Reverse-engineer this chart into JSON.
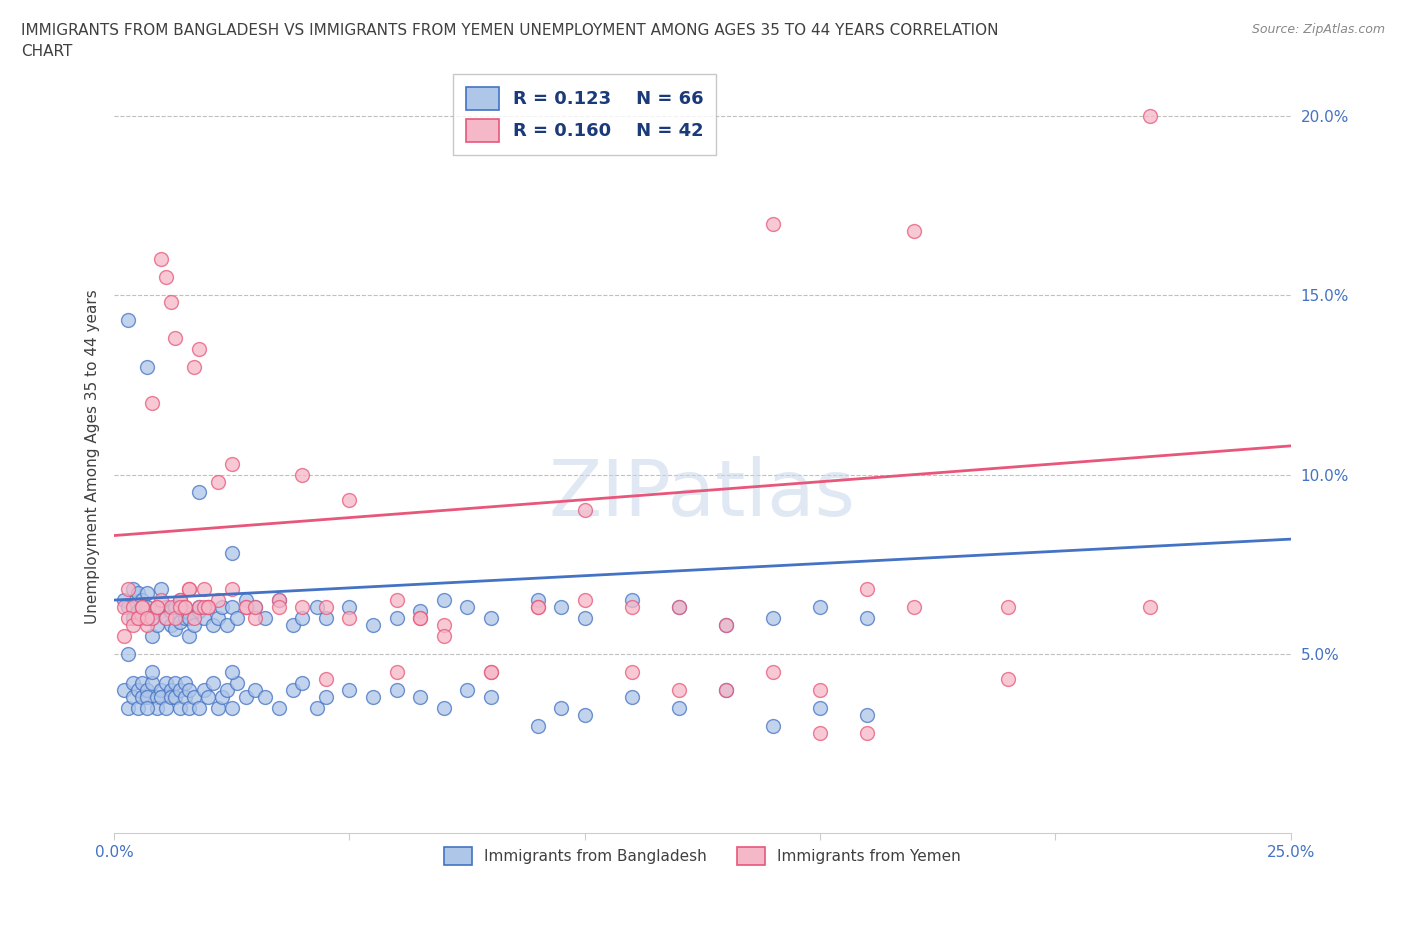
{
  "title_line1": "IMMIGRANTS FROM BANGLADESH VS IMMIGRANTS FROM YEMEN UNEMPLOYMENT AMONG AGES 35 TO 44 YEARS CORRELATION",
  "title_line2": "CHART",
  "source": "Source: ZipAtlas.com",
  "ylabel": "Unemployment Among Ages 35 to 44 years",
  "watermark": "ZIPatlas",
  "xlim": [
    0.0,
    0.25
  ],
  "ylim": [
    0.0,
    0.21
  ],
  "xticks": [
    0.0,
    0.05,
    0.1,
    0.15,
    0.2,
    0.25
  ],
  "yticks": [
    0.0,
    0.05,
    0.1,
    0.15,
    0.2
  ],
  "xticklabels": [
    "0.0%",
    "",
    "",
    "",
    "",
    "25.0%"
  ],
  "yticklabels": [
    "",
    "5.0%",
    "10.0%",
    "15.0%",
    "20.0%"
  ],
  "legend_entries": [
    {
      "label": "Immigrants from Bangladesh",
      "R": "0.123",
      "N": "66"
    },
    {
      "label": "Immigrants from Yemen",
      "R": "0.160",
      "N": "42"
    }
  ],
  "bangladesh_x": [
    0.002,
    0.003,
    0.004,
    0.004,
    0.005,
    0.005,
    0.006,
    0.006,
    0.007,
    0.007,
    0.008,
    0.008,
    0.009,
    0.009,
    0.01,
    0.01,
    0.011,
    0.011,
    0.012,
    0.012,
    0.013,
    0.013,
    0.014,
    0.014,
    0.015,
    0.015,
    0.016,
    0.016,
    0.017,
    0.018,
    0.019,
    0.02,
    0.021,
    0.022,
    0.023,
    0.024,
    0.025,
    0.026,
    0.028,
    0.03,
    0.032,
    0.035,
    0.038,
    0.04,
    0.043,
    0.045,
    0.05,
    0.055,
    0.06,
    0.065,
    0.07,
    0.075,
    0.08,
    0.09,
    0.095,
    0.1,
    0.11,
    0.12,
    0.13,
    0.14,
    0.15,
    0.16,
    0.003,
    0.007,
    0.018,
    0.025
  ],
  "bangladesh_y": [
    0.065,
    0.063,
    0.06,
    0.068,
    0.062,
    0.067,
    0.06,
    0.065,
    0.063,
    0.067,
    0.055,
    0.06,
    0.058,
    0.063,
    0.062,
    0.068,
    0.06,
    0.063,
    0.058,
    0.062,
    0.057,
    0.063,
    0.059,
    0.065,
    0.06,
    0.062,
    0.055,
    0.06,
    0.058,
    0.062,
    0.06,
    0.063,
    0.058,
    0.06,
    0.063,
    0.058,
    0.063,
    0.06,
    0.065,
    0.063,
    0.06,
    0.065,
    0.058,
    0.06,
    0.063,
    0.06,
    0.063,
    0.058,
    0.06,
    0.062,
    0.065,
    0.063,
    0.06,
    0.065,
    0.063,
    0.06,
    0.065,
    0.063,
    0.058,
    0.06,
    0.063,
    0.06,
    0.143,
    0.13,
    0.095,
    0.078
  ],
  "bangladesh_y2": [
    0.04,
    0.035,
    0.042,
    0.038,
    0.035,
    0.04,
    0.038,
    0.042,
    0.04,
    0.038,
    0.042,
    0.045,
    0.038,
    0.035,
    0.04,
    0.038,
    0.042,
    0.035,
    0.04,
    0.038,
    0.042,
    0.038,
    0.035,
    0.04,
    0.042,
    0.038,
    0.035,
    0.04,
    0.038,
    0.035,
    0.04,
    0.038,
    0.042,
    0.035,
    0.038,
    0.04,
    0.035,
    0.042,
    0.038,
    0.04,
    0.038,
    0.035,
    0.04,
    0.042,
    0.035,
    0.038,
    0.04,
    0.038,
    0.04,
    0.038,
    0.035,
    0.04,
    0.038,
    0.03,
    0.035,
    0.033,
    0.038,
    0.035,
    0.04,
    0.03,
    0.035,
    0.033,
    0.05,
    0.035,
    0.063,
    0.045
  ],
  "yemen_x": [
    0.002,
    0.003,
    0.004,
    0.005,
    0.006,
    0.007,
    0.008,
    0.009,
    0.01,
    0.011,
    0.012,
    0.013,
    0.014,
    0.015,
    0.016,
    0.017,
    0.018,
    0.019,
    0.02,
    0.022,
    0.025,
    0.028,
    0.03,
    0.035,
    0.04,
    0.045,
    0.05,
    0.06,
    0.065,
    0.07,
    0.08,
    0.09,
    0.1,
    0.11,
    0.12,
    0.13,
    0.14,
    0.15,
    0.16,
    0.17,
    0.19,
    0.22
  ],
  "yemen_y": [
    0.063,
    0.068,
    0.063,
    0.06,
    0.063,
    0.058,
    0.06,
    0.063,
    0.065,
    0.06,
    0.063,
    0.06,
    0.065,
    0.063,
    0.068,
    0.06,
    0.063,
    0.068,
    0.063,
    0.065,
    0.068,
    0.063,
    0.06,
    0.065,
    0.1,
    0.063,
    0.093,
    0.065,
    0.06,
    0.058,
    0.045,
    0.063,
    0.065,
    0.063,
    0.063,
    0.058,
    0.045,
    0.04,
    0.068,
    0.168,
    0.043,
    0.2
  ],
  "yemen_y2": [
    0.055,
    0.06,
    0.058,
    0.06,
    0.063,
    0.06,
    0.12,
    0.063,
    0.16,
    0.155,
    0.148,
    0.138,
    0.063,
    0.063,
    0.068,
    0.13,
    0.135,
    0.063,
    0.063,
    0.098,
    0.103,
    0.063,
    0.063,
    0.063,
    0.063,
    0.043,
    0.06,
    0.045,
    0.06,
    0.055,
    0.045,
    0.063,
    0.09,
    0.045,
    0.04,
    0.04,
    0.17,
    0.028,
    0.028,
    0.063,
    0.063,
    0.063
  ],
  "blue_line_x": [
    0.0,
    0.25
  ],
  "blue_line_y": [
    0.065,
    0.082
  ],
  "pink_line_x": [
    0.0,
    0.25
  ],
  "pink_line_y": [
    0.083,
    0.108
  ],
  "blue_color": "#4472c4",
  "pink_color": "#e8567a",
  "blue_scatter_color": "#aec6e8",
  "pink_scatter_color": "#f5b8c8",
  "grid_color": "#c0c0c0",
  "title_color": "#404040",
  "tick_color": "#4472c4",
  "legend_text_color": "#1a3a7a"
}
